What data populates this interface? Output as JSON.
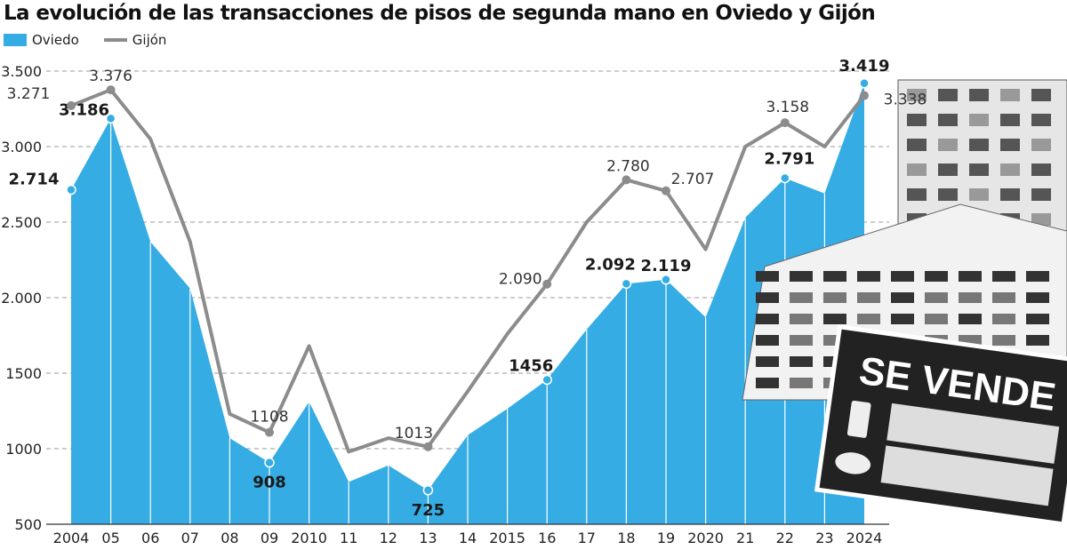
{
  "chart_data": {
    "type": "area",
    "title": "La evolución de las transacciones de pisos de segunda mano en Oviedo y Gijón",
    "xlabel": "",
    "ylabel": "",
    "x_tick_labels": [
      "2004",
      "05",
      "06",
      "07",
      "08",
      "09",
      "2010",
      "11",
      "12",
      "13",
      "14",
      "2015",
      "16",
      "17",
      "18",
      "19",
      "2020",
      "21",
      "22",
      "23",
      "2024"
    ],
    "y_tick_labels": [
      "500",
      "1000",
      "1500",
      "2.000",
      "2.500",
      "3.000",
      "3.500"
    ],
    "y_ticks": [
      500,
      1000,
      1500,
      2000,
      2500,
      3000,
      3500
    ],
    "ylim": [
      500,
      3500
    ],
    "grid": "horizontal dashed",
    "legend": "top-left",
    "series": [
      {
        "name": "Oviedo",
        "type": "area",
        "color": "#35ace4",
        "values": [
          2714,
          3186,
          2370,
          2060,
          1070,
          908,
          1310,
          780,
          890,
          725,
          1090,
          1265,
          1456,
          1790,
          2092,
          2119,
          1870,
          2530,
          2791,
          2690,
          3419
        ],
        "labels": {
          "0": "2.714",
          "1": "3.186",
          "5": "908",
          "9": "725",
          "12": "1456",
          "14": "2.092",
          "15": "2.119",
          "18": "2.791",
          "20": "3.419"
        }
      },
      {
        "name": "Gijón",
        "type": "line",
        "color": "#8c8c8c",
        "values": [
          3271,
          3376,
          3050,
          2370,
          1230,
          1108,
          1680,
          980,
          1070,
          1013,
          1380,
          1760,
          2090,
          2500,
          2780,
          2707,
          2320,
          3000,
          3158,
          3000,
          3338
        ],
        "labels": {
          "0": "3.271",
          "1": "3.376",
          "5": "1108",
          "9": "1013",
          "12": "2.090",
          "14": "2.780",
          "15": "2.707",
          "18": "3.158",
          "20": "3.338"
        }
      }
    ]
  },
  "photo": {
    "sign_text": "SE VENDE"
  }
}
